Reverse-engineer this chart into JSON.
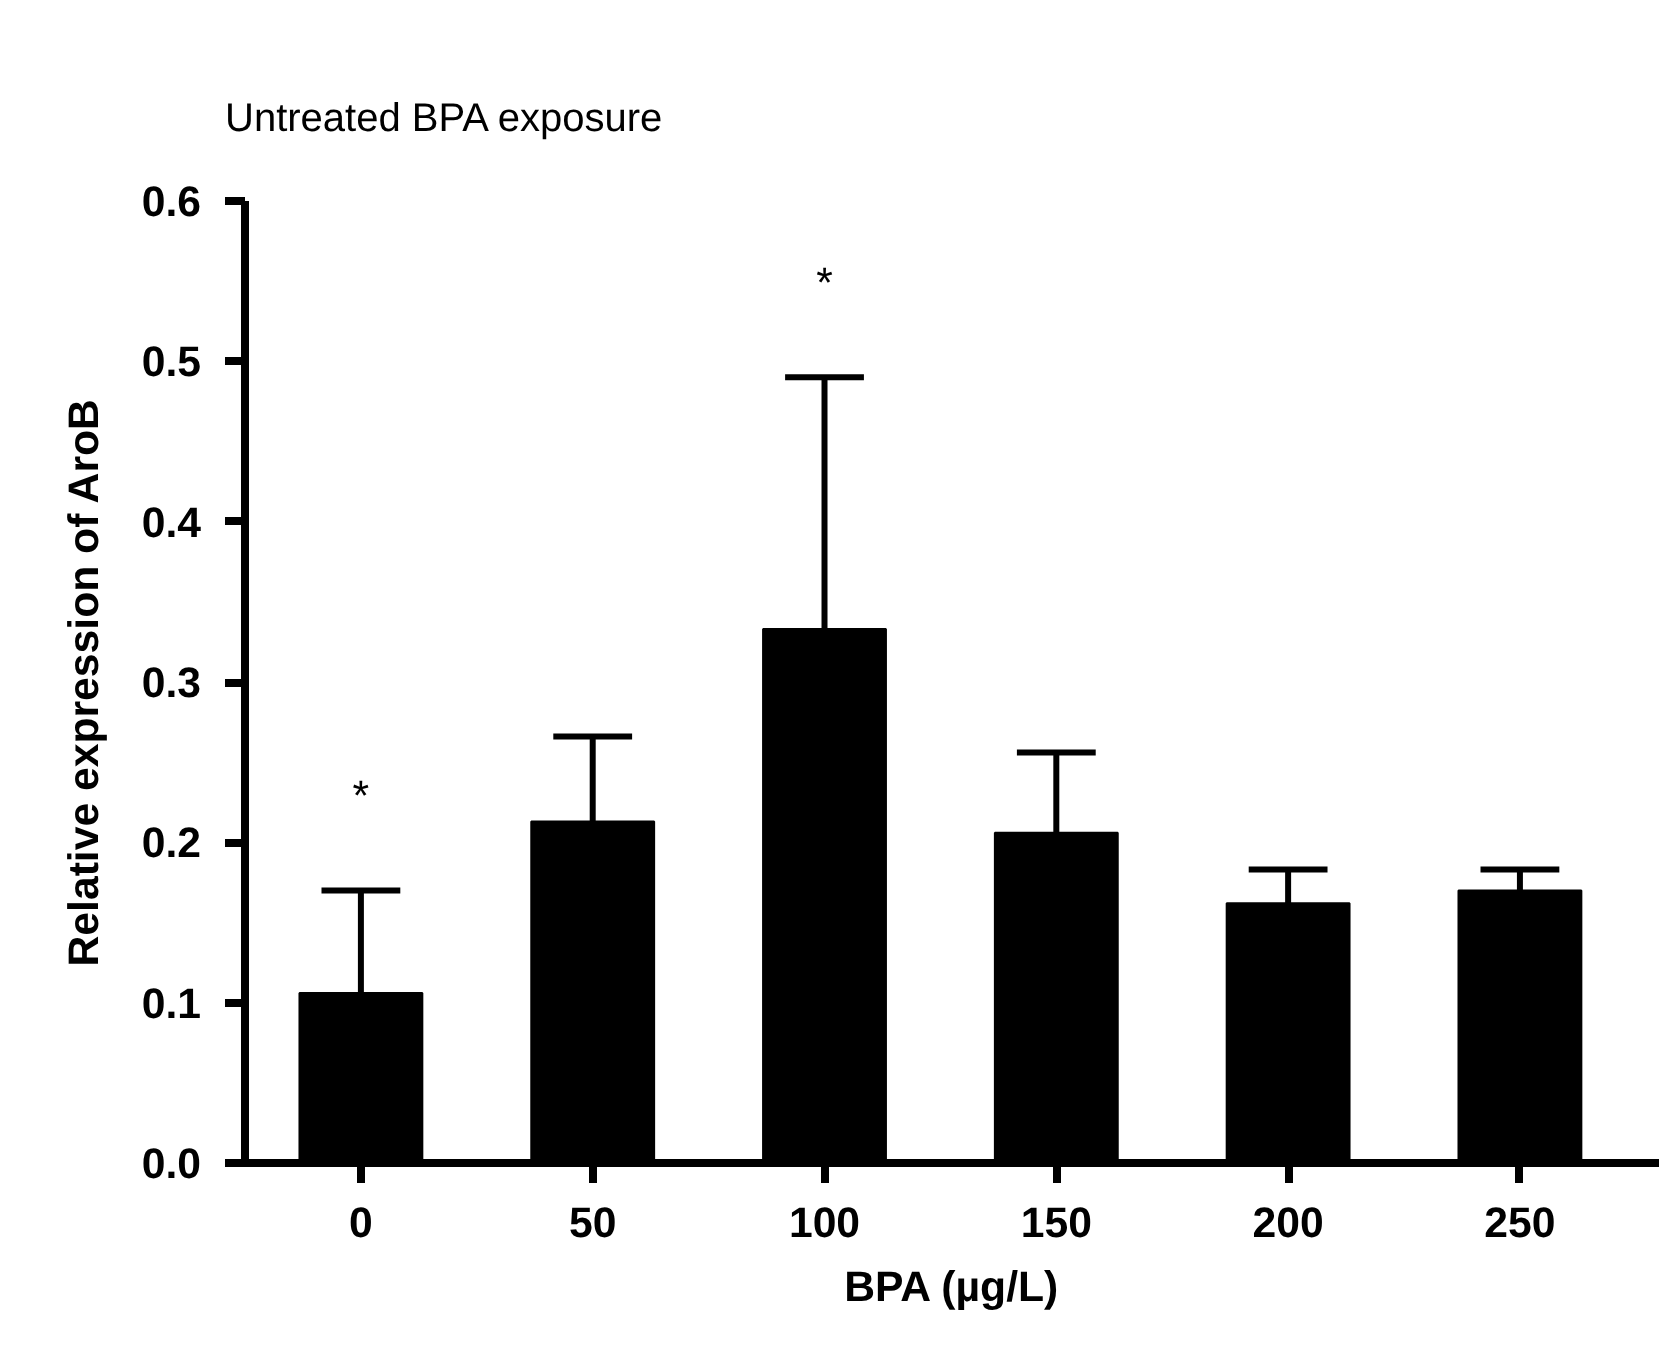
{
  "chart_data": {
    "type": "bar",
    "title": "Untreated BPA exposure",
    "xlabel": "BPA (µg/L)",
    "ylabel": "Relative expression of AroB",
    "categories": [
      "0",
      "50",
      "100",
      "150",
      "200",
      "250"
    ],
    "values": [
      0.106,
      0.213,
      0.333,
      0.206,
      0.162,
      0.17
    ],
    "errors": [
      [
        0.106,
        0.17
      ],
      [
        0.213,
        0.266
      ],
      [
        0.333,
        0.49
      ],
      [
        0.206,
        0.256
      ],
      [
        0.162,
        0.183
      ],
      [
        0.17,
        0.183
      ]
    ],
    "color": "#000000",
    "ylim": [
      0,
      0.6
    ],
    "yticks": [
      {
        "value": 0,
        "label": "0.0"
      },
      0.1,
      0.2,
      0.3,
      0.4,
      0.5,
      0.6
    ],
    "annotations": [
      {
        "text": "*",
        "x": "0",
        "y": 0.17
      },
      {
        "text": "*",
        "x": "100",
        "y": 0.49
      }
    ]
  }
}
